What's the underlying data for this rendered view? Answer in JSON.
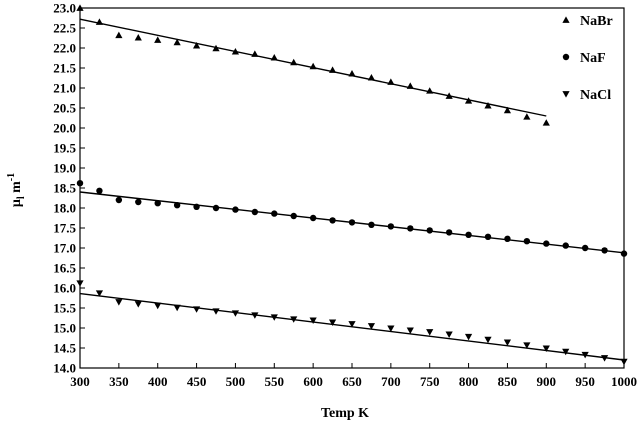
{
  "chart_data": {
    "type": "scatter",
    "title": "",
    "xlabel": "Temp  K",
    "ylabel": "μ",
    "ylabel_sub": "l",
    "ylabel_unit": " m",
    "ylabel_sup": "-1",
    "xlim": [
      300,
      1000
    ],
    "ylim": [
      14.0,
      23.0
    ],
    "x_ticks": [
      "300",
      "350",
      "400",
      "450",
      "500",
      "550",
      "600",
      "650",
      "700",
      "750",
      "800",
      "850",
      "900",
      "950",
      "1000"
    ],
    "y_ticks": [
      "14.0",
      "14.5",
      "15.0",
      "15.5",
      "16.0",
      "16.5",
      "17.0",
      "17.5",
      "18.0",
      "18.5",
      "19.0",
      "19.5",
      "20.0",
      "20.5",
      "21.0",
      "21.5",
      "22.0",
      "22.5",
      "23.0"
    ],
    "grid": false,
    "legend_position": "top-right",
    "series": [
      {
        "name": "NaBr",
        "marker": "triangle-up",
        "x": [
          300,
          325,
          350,
          375,
          400,
          425,
          450,
          475,
          500,
          525,
          550,
          575,
          600,
          625,
          650,
          675,
          700,
          725,
          750,
          775,
          800,
          825,
          850,
          875,
          900
        ],
        "y": [
          23.0,
          22.65,
          22.32,
          22.26,
          22.2,
          22.14,
          22.06,
          21.99,
          21.91,
          21.85,
          21.76,
          21.64,
          21.54,
          21.45,
          21.36,
          21.26,
          21.15,
          21.05,
          20.93,
          20.8,
          20.68,
          20.56,
          20.44,
          20.28,
          20.13
        ],
        "fit": [
          [
            300,
            22.72
          ],
          [
            900,
            20.3
          ]
        ]
      },
      {
        "name": "NaF",
        "marker": "circle",
        "x": [
          300,
          325,
          350,
          375,
          400,
          425,
          450,
          475,
          500,
          525,
          550,
          575,
          600,
          625,
          650,
          675,
          700,
          725,
          750,
          775,
          800,
          825,
          850,
          875,
          900,
          925,
          950,
          975,
          1000
        ],
        "y": [
          18.62,
          18.43,
          18.2,
          18.15,
          18.12,
          18.07,
          18.03,
          18.0,
          17.96,
          17.9,
          17.86,
          17.8,
          17.75,
          17.69,
          17.64,
          17.58,
          17.54,
          17.49,
          17.44,
          17.39,
          17.33,
          17.28,
          17.23,
          17.17,
          17.11,
          17.06,
          17.0,
          16.94,
          16.86
        ],
        "fit": [
          [
            300,
            18.4
          ],
          [
            1000,
            16.88
          ]
        ]
      },
      {
        "name": "NaCl",
        "marker": "triangle-down",
        "x": [
          300,
          325,
          350,
          375,
          400,
          425,
          450,
          475,
          500,
          525,
          550,
          575,
          600,
          625,
          650,
          675,
          700,
          725,
          750,
          775,
          800,
          825,
          850,
          875,
          900,
          925,
          950,
          975,
          1000
        ],
        "y": [
          16.12,
          15.87,
          15.65,
          15.6,
          15.56,
          15.51,
          15.47,
          15.42,
          15.37,
          15.32,
          15.27,
          15.22,
          15.19,
          15.14,
          15.1,
          15.05,
          14.99,
          14.94,
          14.9,
          14.84,
          14.78,
          14.71,
          14.64,
          14.57,
          14.49,
          14.41,
          14.33,
          14.25,
          14.16
        ],
        "fit": [
          [
            300,
            15.86
          ],
          [
            1000,
            14.2
          ]
        ]
      }
    ]
  }
}
